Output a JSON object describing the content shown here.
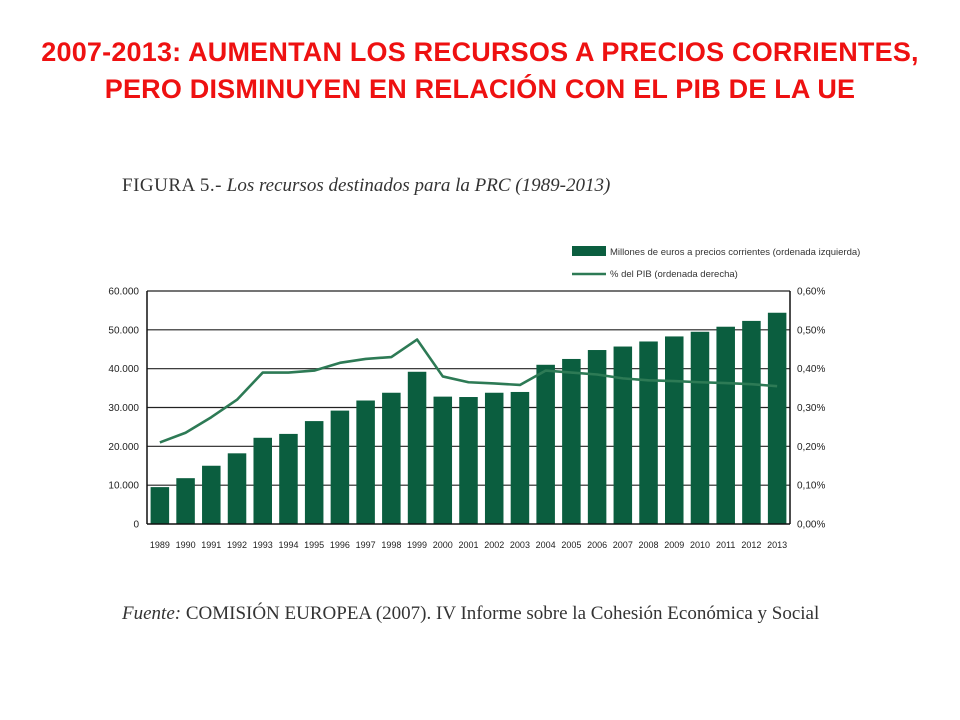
{
  "slide": {
    "title": "2007-2013: AUMENTAN LOS RECURSOS A PRECIOS CORRIENTES, PERO DISMINUYEN EN RELACIÓN CON EL PIB DE LA UE"
  },
  "figure": {
    "label": "FIGURA 5.-",
    "caption": "Los recursos destinados para la PRC (1989-2013)"
  },
  "source": {
    "label": "Fuente:",
    "text": "COMISIÓN EUROPEA (2007). IV Informe sobre la Cohesión Económica y Social"
  },
  "colors": {
    "title": "#ee1111",
    "bar": "#0b5e3f",
    "line": "#2d7a55"
  },
  "chart_data": {
    "type": "bar",
    "categories": [
      "1989",
      "1990",
      "1991",
      "1992",
      "1993",
      "1994",
      "1995",
      "1996",
      "1997",
      "1998",
      "1999",
      "2000",
      "2001",
      "2002",
      "2003",
      "2004",
      "2005",
      "2006",
      "2007",
      "2008",
      "2009",
      "2010",
      "2011",
      "2012",
      "2013"
    ],
    "series": [
      {
        "name": "Millones de euros a precios corrientes (ordenada izquierda)",
        "type": "bar",
        "axis": "left",
        "values": [
          9500,
          11800,
          15000,
          18200,
          22200,
          23200,
          26500,
          29200,
          31800,
          33800,
          39200,
          32800,
          32700,
          33800,
          34000,
          41000,
          42500,
          44800,
          45700,
          47000,
          48300,
          49500,
          50800,
          52300,
          54400
        ]
      },
      {
        "name": "% del PIB (ordenada derecha)",
        "type": "line",
        "axis": "right",
        "values": [
          0.21,
          0.235,
          0.275,
          0.32,
          0.39,
          0.39,
          0.395,
          0.415,
          0.425,
          0.43,
          0.475,
          0.38,
          0.365,
          0.362,
          0.358,
          0.395,
          0.39,
          0.385,
          0.375,
          0.37,
          0.368,
          0.365,
          0.363,
          0.36,
          0.355
        ]
      }
    ],
    "y_left": {
      "ylim": [
        0,
        60000
      ],
      "ticks": [
        0,
        10000,
        20000,
        30000,
        40000,
        50000,
        60000
      ],
      "tick_labels": [
        "0",
        "10.000",
        "20.000",
        "30.000",
        "40.000",
        "50.000",
        "60.000"
      ]
    },
    "y_right": {
      "ylim": [
        0,
        0.6
      ],
      "ticks": [
        0,
        0.1,
        0.2,
        0.3,
        0.4,
        0.5,
        0.6
      ],
      "tick_labels": [
        "0,00%",
        "0,10%",
        "0,20%",
        "0,30%",
        "0,40%",
        "0,50%",
        "0,60%"
      ]
    },
    "grid": true,
    "legend": "top-right"
  }
}
